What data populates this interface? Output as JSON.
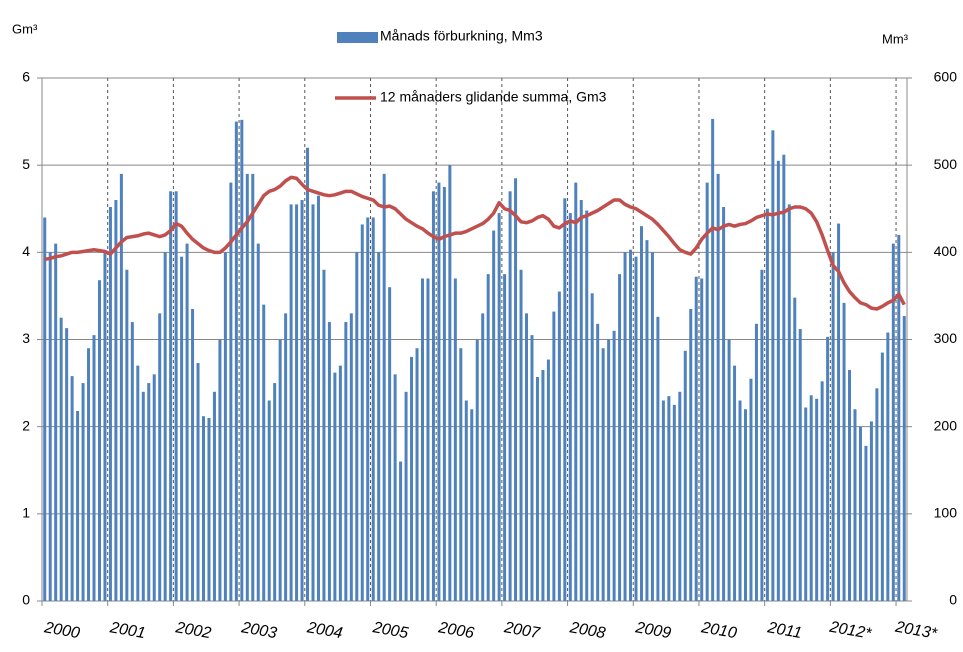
{
  "chart_data": {
    "type": "combo",
    "y_label": "Gm³",
    "y2_label": "Mm³",
    "categories": [
      "2000",
      null,
      null,
      null,
      null,
      null,
      null,
      null,
      null,
      null,
      null,
      null,
      "2001",
      null,
      null,
      null,
      null,
      null,
      null,
      null,
      null,
      null,
      null,
      null,
      "2002",
      null,
      null,
      null,
      null,
      null,
      null,
      null,
      null,
      null,
      null,
      null,
      "2003",
      null,
      null,
      null,
      null,
      null,
      null,
      null,
      null,
      null,
      null,
      null,
      "2004",
      null,
      null,
      null,
      null,
      null,
      null,
      null,
      null,
      null,
      null,
      null,
      "2005",
      null,
      null,
      null,
      null,
      null,
      null,
      null,
      null,
      null,
      null,
      null,
      "2006",
      null,
      null,
      null,
      null,
      null,
      null,
      null,
      null,
      null,
      null,
      null,
      "2007",
      null,
      null,
      null,
      null,
      null,
      null,
      null,
      null,
      null,
      null,
      null,
      "2008",
      null,
      null,
      null,
      null,
      null,
      null,
      null,
      null,
      null,
      null,
      null,
      "2009",
      null,
      null,
      null,
      null,
      null,
      null,
      null,
      null,
      null,
      null,
      null,
      "2010",
      null,
      null,
      null,
      null,
      null,
      null,
      null,
      null,
      null,
      null,
      null,
      "2011",
      null,
      null,
      null,
      null,
      null,
      null,
      null,
      null,
      null,
      null,
      null,
      "2012*",
      null,
      null,
      null,
      null,
      null,
      null,
      null,
      null,
      null,
      null,
      null,
      "2013*",
      null
    ],
    "series": [
      {
        "name": "Månads förburkning, Mm3",
        "type": "bar",
        "axis": "y2",
        "color": "#4f81bd",
        "values": [
          440,
          400,
          410,
          325,
          313,
          258,
          218,
          250,
          290,
          305,
          368,
          400,
          452,
          460,
          490,
          380,
          320,
          270,
          240,
          250,
          260,
          330,
          400,
          470,
          470,
          395,
          410,
          335,
          273,
          212,
          210,
          240,
          300,
          400,
          480,
          550,
          552,
          490,
          490,
          410,
          340,
          230,
          250,
          300,
          330,
          455,
          455,
          460,
          520,
          455,
          465,
          380,
          320,
          262,
          270,
          320,
          330,
          400,
          432,
          440,
          440,
          400,
          490,
          360,
          260,
          160,
          240,
          280,
          290,
          370,
          370,
          470,
          480,
          475,
          500,
          370,
          290,
          230,
          220,
          300,
          330,
          375,
          425,
          445,
          375,
          470,
          485,
          380,
          330,
          305,
          257,
          265,
          277,
          332,
          355,
          462,
          445,
          480,
          460,
          448,
          353,
          318,
          290,
          300,
          310,
          375,
          400,
          403,
          395,
          430,
          414,
          400,
          326,
          230,
          235,
          225,
          240,
          287,
          335,
          372,
          370,
          480,
          553,
          490,
          452,
          300,
          270,
          230,
          220,
          255,
          318,
          380,
          450,
          540,
          505,
          512,
          455,
          348,
          312,
          222,
          236,
          232,
          252,
          303,
          400,
          433,
          342,
          265,
          220,
          200,
          178,
          206,
          244,
          285,
          308,
          410,
          420,
          327
        ]
      },
      {
        "name": "12 månaders glidande summa, Gm3",
        "type": "line",
        "color": "#c0504d",
        "values": [
          3.92,
          3.93,
          3.95,
          3.96,
          3.98,
          4.0,
          4.0,
          4.01,
          4.02,
          4.03,
          4.02,
          4.01,
          3.98,
          4.05,
          4.12,
          4.17,
          4.18,
          4.19,
          4.21,
          4.22,
          4.2,
          4.18,
          4.2,
          4.25,
          4.33,
          4.3,
          4.22,
          4.15,
          4.1,
          4.05,
          4.02,
          4.0,
          4.0,
          4.05,
          4.12,
          4.2,
          4.28,
          4.35,
          4.45,
          4.55,
          4.65,
          4.7,
          4.72,
          4.76,
          4.82,
          4.86,
          4.85,
          4.78,
          4.72,
          4.7,
          4.68,
          4.66,
          4.65,
          4.66,
          4.68,
          4.7,
          4.7,
          4.67,
          4.64,
          4.62,
          4.6,
          4.54,
          4.52,
          4.53,
          4.5,
          4.44,
          4.38,
          4.34,
          4.3,
          4.27,
          4.22,
          4.18,
          4.15,
          4.18,
          4.2,
          4.22,
          4.22,
          4.24,
          4.27,
          4.3,
          4.33,
          4.38,
          4.45,
          4.57,
          4.5,
          4.48,
          4.42,
          4.35,
          4.34,
          4.36,
          4.4,
          4.42,
          4.38,
          4.3,
          4.28,
          4.33,
          4.36,
          4.34,
          4.4,
          4.42,
          4.45,
          4.48,
          4.52,
          4.56,
          4.6,
          4.6,
          4.55,
          4.52,
          4.5,
          4.46,
          4.42,
          4.38,
          4.32,
          4.25,
          4.18,
          4.1,
          4.03,
          4.0,
          3.98,
          4.05,
          4.15,
          4.22,
          4.28,
          4.26,
          4.3,
          4.32,
          4.3,
          4.32,
          4.33,
          4.36,
          4.4,
          4.42,
          4.44,
          4.43,
          4.45,
          4.46,
          4.5,
          4.52,
          4.52,
          4.5,
          4.45,
          4.35,
          4.2,
          4.02,
          3.85,
          3.78,
          3.65,
          3.55,
          3.48,
          3.42,
          3.4,
          3.36,
          3.35,
          3.38,
          3.42,
          3.45,
          3.52,
          3.4
        ]
      }
    ],
    "ylim": [
      0,
      6
    ],
    "yticks": [
      0,
      1,
      2,
      3,
      4,
      5,
      6
    ],
    "y2lim": [
      0,
      600
    ],
    "y2ticks": [
      0,
      100,
      200,
      300,
      400,
      500,
      600
    ],
    "grid": true
  }
}
